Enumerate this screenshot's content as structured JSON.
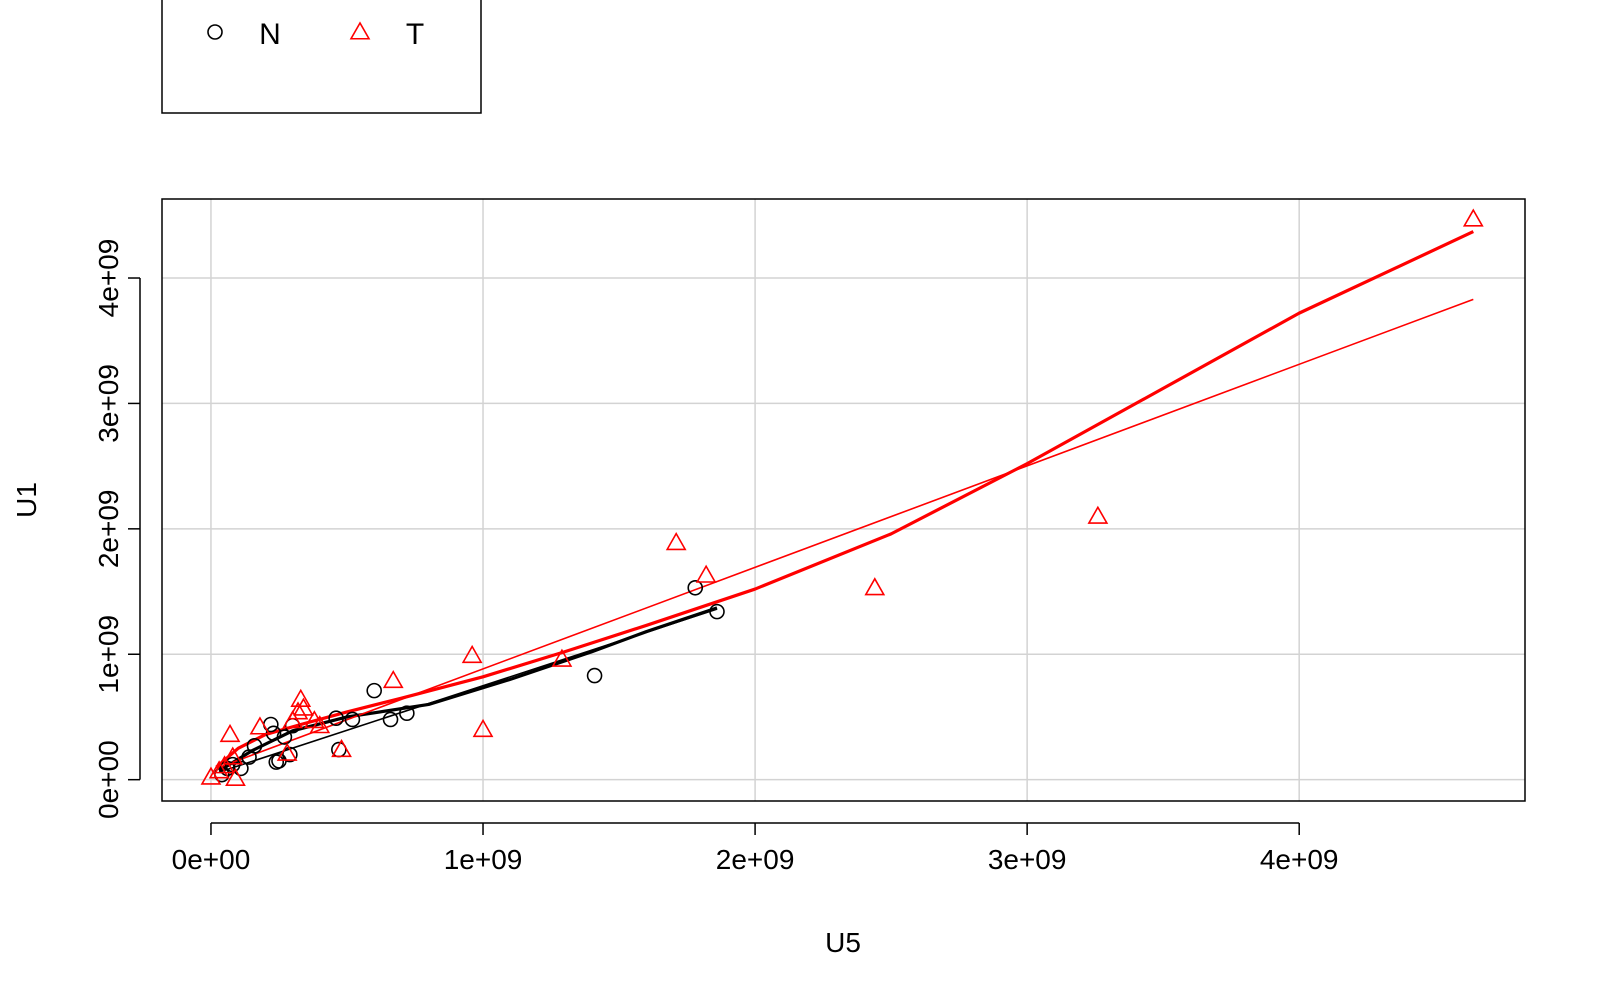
{
  "chart_data": {
    "type": "scatter",
    "xlabel": "U5",
    "ylabel": "U1",
    "xlim": [
      -180000000,
      4830000000
    ],
    "ylim": [
      -170000000,
      4630000000
    ],
    "x_ticks": [
      0,
      1000000000,
      2000000000,
      3000000000,
      4000000000
    ],
    "x_tick_labels": [
      "0e+00",
      "1e+09",
      "2e+09",
      "3e+09",
      "4e+09"
    ],
    "y_ticks": [
      0,
      1000000000,
      2000000000,
      3000000000,
      4000000000
    ],
    "y_tick_labels": [
      "0e+00",
      "1e+09",
      "2e+09",
      "3e+09",
      "4e+09"
    ],
    "grid": true,
    "legend": {
      "placement": "top-left",
      "entries": [
        {
          "label": "N",
          "marker": "circle",
          "color": "#000000"
        },
        {
          "label": "T",
          "marker": "triangle",
          "color": "#ff0000"
        }
      ]
    },
    "series": [
      {
        "name": "N",
        "marker": "circle",
        "color": "#000000",
        "points": [
          [
            40000000,
            40000000
          ],
          [
            60000000,
            90000000
          ],
          [
            80000000,
            120000000
          ],
          [
            110000000,
            90000000
          ],
          [
            140000000,
            180000000
          ],
          [
            160000000,
            270000000
          ],
          [
            220000000,
            440000000
          ],
          [
            230000000,
            370000000
          ],
          [
            240000000,
            140000000
          ],
          [
            250000000,
            150000000
          ],
          [
            270000000,
            340000000
          ],
          [
            290000000,
            200000000
          ],
          [
            300000000,
            430000000
          ],
          [
            460000000,
            490000000
          ],
          [
            470000000,
            240000000
          ],
          [
            520000000,
            480000000
          ],
          [
            600000000,
            710000000
          ],
          [
            660000000,
            480000000
          ],
          [
            720000000,
            530000000
          ],
          [
            1410000000,
            830000000
          ],
          [
            1780000000,
            1530000000
          ],
          [
            1860000000,
            1340000000
          ]
        ],
        "fit_linear": [
          [
            30000000,
            60000000
          ],
          [
            1860000000,
            1360000000
          ]
        ],
        "fit_smooth": [
          [
            30000000,
            70000000
          ],
          [
            150000000,
            230000000
          ],
          [
            300000000,
            390000000
          ],
          [
            500000000,
            500000000
          ],
          [
            800000000,
            600000000
          ],
          [
            1100000000,
            800000000
          ],
          [
            1400000000,
            1020000000
          ],
          [
            1600000000,
            1180000000
          ],
          [
            1860000000,
            1370000000
          ]
        ]
      },
      {
        "name": "T",
        "marker": "triangle",
        "color": "#ff0000",
        "points": [
          [
            0,
            20000000
          ],
          [
            30000000,
            70000000
          ],
          [
            50000000,
            110000000
          ],
          [
            70000000,
            360000000
          ],
          [
            80000000,
            180000000
          ],
          [
            90000000,
            10000000
          ],
          [
            180000000,
            420000000
          ],
          [
            280000000,
            210000000
          ],
          [
            300000000,
            470000000
          ],
          [
            320000000,
            540000000
          ],
          [
            330000000,
            640000000
          ],
          [
            340000000,
            570000000
          ],
          [
            380000000,
            470000000
          ],
          [
            400000000,
            430000000
          ],
          [
            480000000,
            240000000
          ],
          [
            670000000,
            790000000
          ],
          [
            960000000,
            990000000
          ],
          [
            1000000000,
            400000000
          ],
          [
            1290000000,
            960000000
          ],
          [
            1710000000,
            1890000000
          ],
          [
            1820000000,
            1630000000
          ],
          [
            2440000000,
            1530000000
          ],
          [
            3260000000,
            2100000000
          ],
          [
            4640000000,
            4470000000
          ]
        ],
        "fit_linear": [
          [
            20000000,
            90000000
          ],
          [
            4640000000,
            3830000000
          ]
        ],
        "fit_smooth": [
          [
            20000000,
            100000000
          ],
          [
            100000000,
            250000000
          ],
          [
            200000000,
            360000000
          ],
          [
            330000000,
            440000000
          ],
          [
            500000000,
            540000000
          ],
          [
            700000000,
            650000000
          ],
          [
            1000000000,
            820000000
          ],
          [
            1300000000,
            1020000000
          ],
          [
            1600000000,
            1230000000
          ],
          [
            2000000000,
            1520000000
          ],
          [
            2500000000,
            1960000000
          ],
          [
            3000000000,
            2520000000
          ],
          [
            3500000000,
            3120000000
          ],
          [
            4000000000,
            3720000000
          ],
          [
            4640000000,
            4370000000
          ]
        ]
      }
    ]
  }
}
